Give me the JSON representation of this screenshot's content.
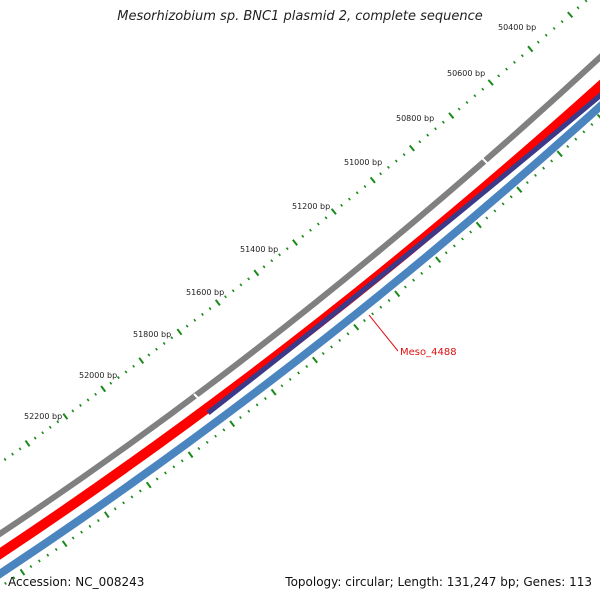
{
  "title": "Mesorhizobium sp. BNC1 plasmid 2, complete sequence",
  "accession": "Accession: NC_008243",
  "summary": "Topology: circular; Length: 131,247 bp; Genes: 113",
  "scale": {
    "unit": "bp",
    "labels": [
      {
        "text": "50400 bp"
      },
      {
        "text": "50600 bp"
      },
      {
        "text": "50800 bp"
      },
      {
        "text": "51000 bp"
      },
      {
        "text": "51200 bp"
      },
      {
        "text": "51400 bp"
      },
      {
        "text": "51600 bp"
      },
      {
        "text": "51800 bp"
      },
      {
        "text": "52000 bp"
      },
      {
        "text": "52200 bp"
      }
    ]
  },
  "tracks": [
    {
      "name": "backbone",
      "color": "#808080"
    },
    {
      "name": "forward-cds",
      "color": "#ff0000"
    },
    {
      "name": "reverse-cds",
      "color": "#4a85c0"
    },
    {
      "name": "gene-feature",
      "color": "#3c3a88"
    }
  ],
  "tick_color": "#1a8a1a",
  "gene": {
    "label": "Meso_4488",
    "color": "#e01010"
  }
}
